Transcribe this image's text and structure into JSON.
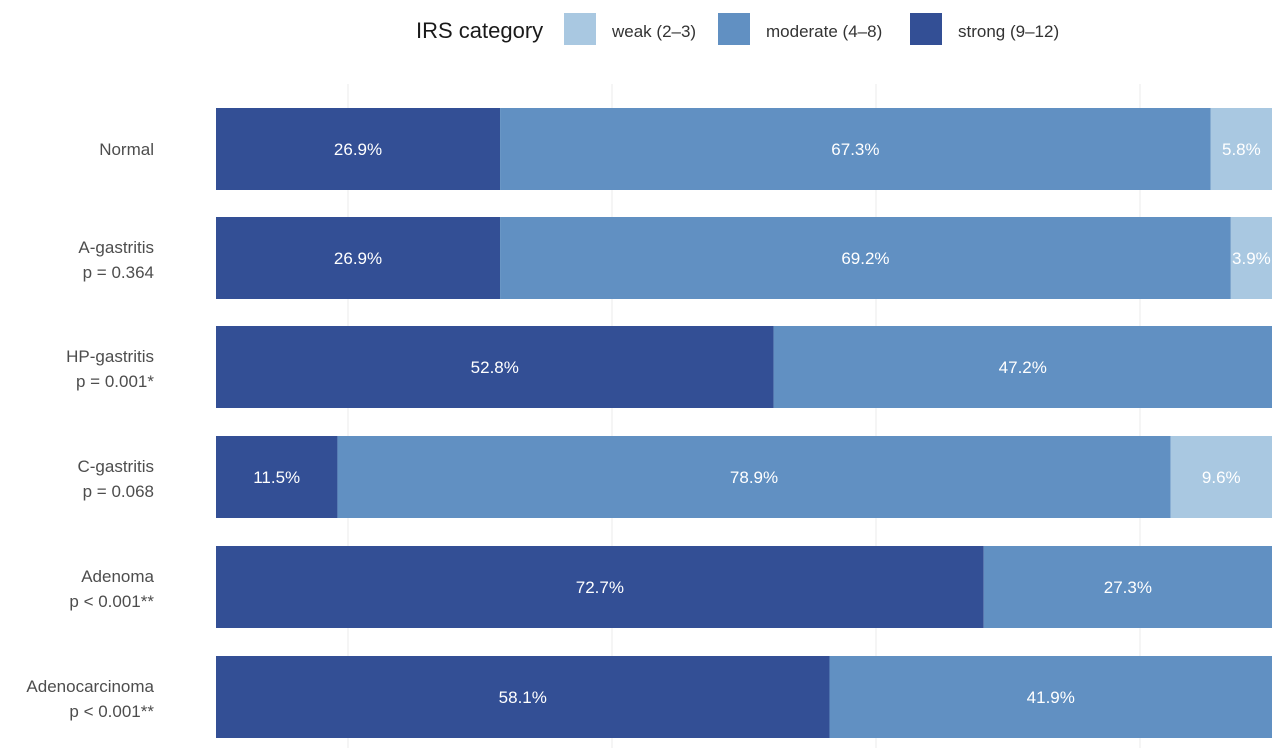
{
  "chart_data": {
    "type": "bar",
    "orientation": "horizontal",
    "stacked": true,
    "xlim": [
      0,
      100
    ],
    "grid": true,
    "legend_position": "top",
    "legend": {
      "title": "IRS category",
      "entries": [
        {
          "key": "weak",
          "label": "weak (2–3)",
          "color": "#a9c8e1"
        },
        {
          "key": "moderate",
          "label": "moderate (4–8)",
          "color": "#6190c2"
        },
        {
          "key": "strong",
          "label": "strong (9–12)",
          "color": "#334f95"
        }
      ]
    },
    "categories": [
      {
        "name": "Normal",
        "p_label": ""
      },
      {
        "name": "A-gastritis",
        "p_label": "p = 0.364"
      },
      {
        "name": "HP-gastritis",
        "p_label": "p = 0.001*"
      },
      {
        "name": "C-gastritis",
        "p_label": "p = 0.068"
      },
      {
        "name": "Adenoma",
        "p_label": "p < 0.001**"
      },
      {
        "name": "Adenocarcinoma",
        "p_label": "p < 0.001**"
      }
    ],
    "series": [
      {
        "key": "strong",
        "values": [
          26.9,
          26.9,
          52.8,
          11.5,
          72.7,
          58.1
        ],
        "labels": [
          "26.9%",
          "26.9%",
          "52.8%",
          "11.5%",
          "72.7%",
          "58.1%"
        ]
      },
      {
        "key": "moderate",
        "values": [
          67.3,
          69.2,
          47.2,
          78.9,
          27.3,
          41.9
        ],
        "labels": [
          "67.3%",
          "69.2%",
          "47.2%",
          "78.9%",
          "27.3%",
          "41.9%"
        ]
      },
      {
        "key": "weak",
        "values": [
          5.8,
          3.9,
          0,
          9.6,
          0,
          0
        ],
        "labels": [
          "5.8%",
          "3.9%",
          "",
          "9.6%",
          "",
          ""
        ]
      }
    ]
  }
}
